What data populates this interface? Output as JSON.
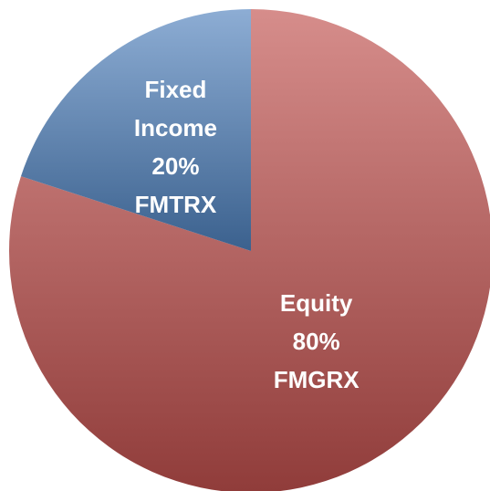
{
  "chart_data": {
    "type": "pie",
    "categories": [
      "Equity",
      "Fixed Income"
    ],
    "values": [
      80,
      20
    ],
    "value_labels": [
      "80%",
      "20%"
    ],
    "tickers": [
      "FMGRX",
      "FMTRX"
    ],
    "colors": [
      "#c0504d",
      "#4f81bd"
    ]
  }
}
